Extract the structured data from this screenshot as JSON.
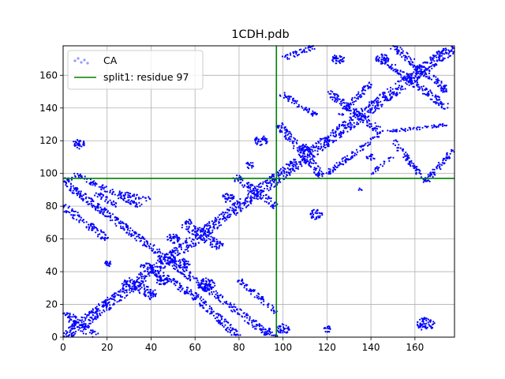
{
  "chart_data": {
    "type": "scatter",
    "title": "1CDH.pdb",
    "xlabel": "",
    "ylabel": "",
    "xlim": [
      0,
      178
    ],
    "ylim": [
      0,
      178
    ],
    "xticks": [
      0,
      20,
      40,
      60,
      80,
      100,
      120,
      140,
      160
    ],
    "yticks": [
      0,
      20,
      40,
      60,
      80,
      100,
      120,
      140,
      160
    ],
    "grid": true,
    "legend_position": "upper-left",
    "series": [
      {
        "name": "CA",
        "color": "#0000ff",
        "marker": "dot",
        "clusters": [
          {
            "kind": "band",
            "from": [
              0,
              0
            ],
            "to": [
              178,
              178
            ],
            "width": 6
          },
          {
            "kind": "band",
            "from": [
              0,
              15
            ],
            "to": [
              15,
              0
            ],
            "width": 5
          },
          {
            "kind": "band",
            "from": [
              0,
              95
            ],
            "to": [
              95,
              0
            ],
            "width": 4
          },
          {
            "kind": "band",
            "from": [
              0,
              80
            ],
            "to": [
              20,
              60
            ],
            "width": 4
          },
          {
            "kind": "band",
            "from": [
              0,
              95
            ],
            "to": [
              8,
              100
            ],
            "width": 3
          },
          {
            "kind": "band",
            "from": [
              8,
              98
            ],
            "to": [
              35,
              80
            ],
            "width": 3
          },
          {
            "kind": "band",
            "from": [
              15,
              88
            ],
            "to": [
              25,
              80
            ],
            "width": 3
          },
          {
            "kind": "band",
            "from": [
              25,
              88
            ],
            "to": [
              40,
              84
            ],
            "width": 3
          },
          {
            "kind": "band",
            "from": [
              28,
              35
            ],
            "to": [
              42,
              25
            ],
            "width": 6
          },
          {
            "kind": "band",
            "from": [
              36,
              45
            ],
            "to": [
              60,
              25
            ],
            "width": 4
          },
          {
            "kind": "band",
            "from": [
              55,
              70
            ],
            "to": [
              72,
              55
            ],
            "width": 6
          },
          {
            "kind": "band",
            "from": [
              60,
              25
            ],
            "to": [
              80,
              0
            ],
            "width": 4
          },
          {
            "kind": "band",
            "from": [
              78,
              98
            ],
            "to": [
              97,
              80
            ],
            "width": 4
          },
          {
            "kind": "band",
            "from": [
              80,
              35
            ],
            "to": [
              97,
              15
            ],
            "width": 3
          },
          {
            "kind": "band",
            "from": [
              92,
              5
            ],
            "to": [
              98,
              0
            ],
            "width": 3
          },
          {
            "kind": "band",
            "from": [
              98,
              150
            ],
            "to": [
              115,
              135
            ],
            "width": 3
          },
          {
            "kind": "band",
            "from": [
              98,
              130
            ],
            "to": [
              118,
              98
            ],
            "width": 4
          },
          {
            "kind": "band",
            "from": [
              100,
              170
            ],
            "to": [
              115,
              178
            ],
            "width": 3
          },
          {
            "kind": "band",
            "from": [
              120,
              150
            ],
            "to": [
              145,
              125
            ],
            "width": 4
          },
          {
            "kind": "band",
            "from": [
              120,
              100
            ],
            "to": [
              145,
              125
            ],
            "width": 3
          },
          {
            "kind": "band",
            "from": [
              145,
              170
            ],
            "to": [
              175,
              140
            ],
            "width": 4
          },
          {
            "kind": "band",
            "from": [
              150,
              178
            ],
            "to": [
              175,
              150
            ],
            "width": 4
          },
          {
            "kind": "band",
            "from": [
              145,
              125
            ],
            "to": [
              175,
              130
            ],
            "width": 2
          },
          {
            "kind": "band",
            "from": [
              150,
              120
            ],
            "to": [
              165,
              95
            ],
            "width": 3
          },
          {
            "kind": "band",
            "from": [
              165,
              95
            ],
            "to": [
              178,
              115
            ],
            "width": 3
          },
          {
            "kind": "band",
            "from": [
              140,
              100
            ],
            "to": [
              150,
              110
            ],
            "width": 2
          },
          {
            "kind": "band",
            "from": [
              125,
              135
            ],
            "to": [
              140,
              155
            ],
            "width": 3
          },
          {
            "kind": "blob",
            "center": [
              7,
              118
            ],
            "r": 3
          },
          {
            "kind": "blob",
            "center": [
              90,
              120
            ],
            "r": 3
          },
          {
            "kind": "blob",
            "center": [
              115,
              75
            ],
            "r": 3
          },
          {
            "kind": "blob",
            "center": [
              165,
              8
            ],
            "r": 4
          },
          {
            "kind": "blob",
            "center": [
              120,
              5
            ],
            "r": 2
          },
          {
            "kind": "blob",
            "center": [
              100,
              5
            ],
            "r": 3
          },
          {
            "kind": "blob",
            "center": [
              65,
              32
            ],
            "r": 4
          },
          {
            "kind": "blob",
            "center": [
              20,
              45
            ],
            "r": 2
          },
          {
            "kind": "blob",
            "center": [
              50,
              60
            ],
            "r": 3
          },
          {
            "kind": "blob",
            "center": [
              75,
              85
            ],
            "r": 3
          },
          {
            "kind": "blob",
            "center": [
              85,
              105
            ],
            "r": 2
          },
          {
            "kind": "blob",
            "center": [
              110,
              115
            ],
            "r": 3
          },
          {
            "kind": "blob",
            "center": [
              125,
              170
            ],
            "r": 3
          },
          {
            "kind": "blob",
            "center": [
              145,
              170
            ],
            "r": 3
          },
          {
            "kind": "blob",
            "center": [
              140,
              110
            ],
            "r": 2
          },
          {
            "kind": "blob",
            "center": [
              135,
              90
            ],
            "r": 1
          },
          {
            "kind": "blob",
            "center": [
              55,
              45
            ],
            "r": 3
          },
          {
            "kind": "blob",
            "center": [
              45,
              35
            ],
            "r": 3
          }
        ]
      },
      {
        "name": "split1: residue 97",
        "color": "#008000",
        "marker": "line",
        "vertical_x": 97,
        "horizontal_y": 97
      }
    ]
  }
}
